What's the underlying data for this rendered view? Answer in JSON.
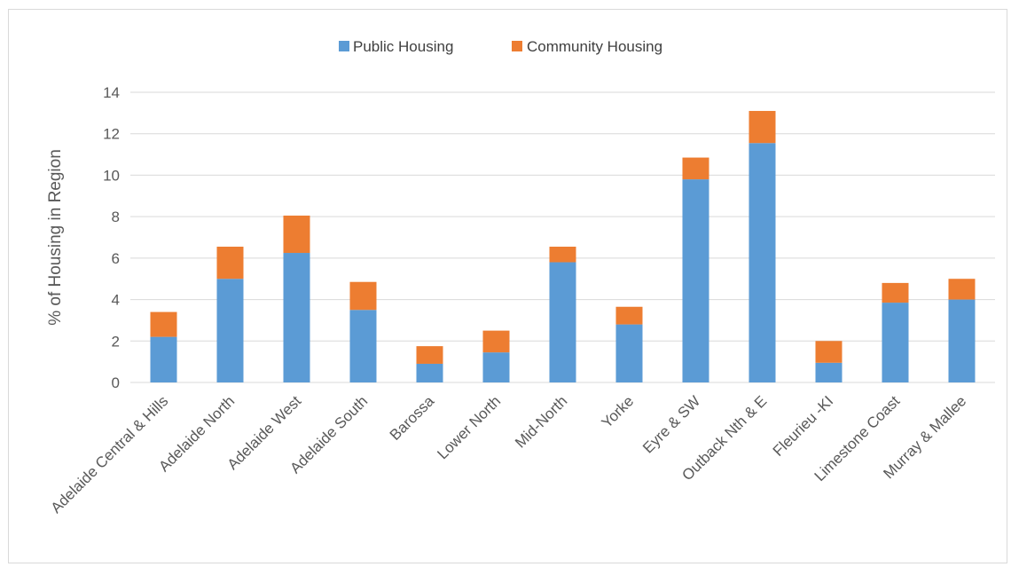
{
  "chart_data": {
    "type": "bar",
    "stacked": true,
    "title": "",
    "xlabel": "",
    "ylabel": "% of Housing in Region",
    "ylim": [
      0,
      14
    ],
    "yticks": [
      0,
      2,
      4,
      6,
      8,
      10,
      12,
      14
    ],
    "grid": true,
    "legend_position": "top-center",
    "categories": [
      "Adelaide Central & Hills",
      "Adelaide North",
      "Adelaide West",
      "Adelaide South",
      "Barossa",
      "Lower North",
      "Mid-North",
      "Yorke",
      "Eyre & SW",
      "Outback Nth & E",
      "Fleurieu -KI",
      "Limestone Coast",
      "Murray & Mallee"
    ],
    "series": [
      {
        "name": "Public Housing",
        "color": "#5b9bd5",
        "values": [
          2.2,
          5.0,
          6.25,
          3.5,
          0.9,
          1.45,
          5.8,
          2.8,
          9.8,
          11.55,
          0.95,
          3.85,
          4.0
        ]
      },
      {
        "name": "Community Housing",
        "color": "#ed7d31",
        "values": [
          1.2,
          1.55,
          1.8,
          1.35,
          0.85,
          1.05,
          0.75,
          0.85,
          1.05,
          1.55,
          1.05,
          0.95,
          1.0
        ]
      }
    ]
  }
}
